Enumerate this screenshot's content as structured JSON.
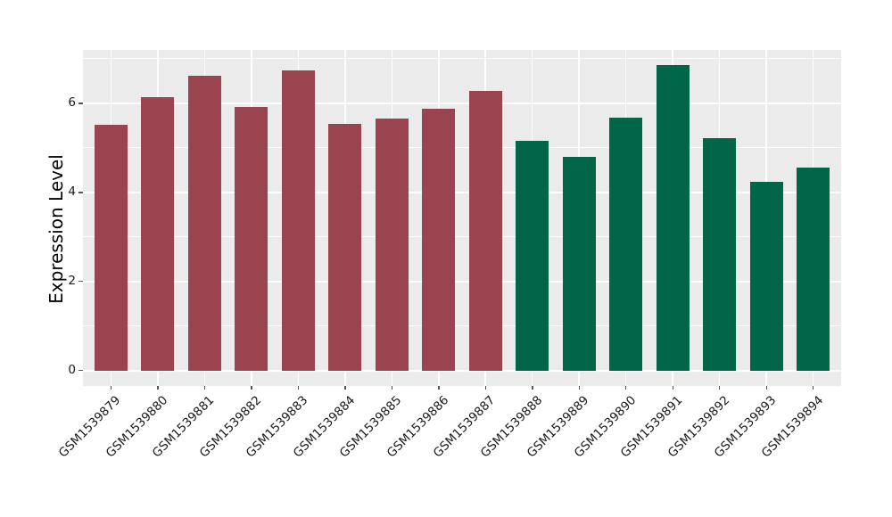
{
  "chart_data": {
    "type": "bar",
    "title": "",
    "xlabel": "",
    "ylabel": "Expression Level",
    "categories": [
      "GSM1539879",
      "GSM1539880",
      "GSM1539881",
      "GSM1539882",
      "GSM1539883",
      "GSM1539884",
      "GSM1539885",
      "GSM1539886",
      "GSM1539887",
      "GSM1539888",
      "GSM1539889",
      "GSM1539890",
      "GSM1539891",
      "GSM1539892",
      "GSM1539893",
      "GSM1539894"
    ],
    "values": [
      5.52,
      6.13,
      6.61,
      5.91,
      6.73,
      5.54,
      5.65,
      5.87,
      6.27,
      5.16,
      4.8,
      5.67,
      6.86,
      5.21,
      4.23,
      4.55
    ],
    "bar_colors": [
      "#9A4450",
      "#9A4450",
      "#9A4450",
      "#9A4450",
      "#9A4450",
      "#9A4450",
      "#9A4450",
      "#9A4450",
      "#9A4450",
      "#006647",
      "#006647",
      "#006647",
      "#006647",
      "#006647",
      "#006647",
      "#006647"
    ],
    "group_colors": {
      "group1_color": "#9A4450",
      "group1_count": 9,
      "group2_color": "#006647",
      "group2_count": 7
    },
    "yticks": [
      0,
      2,
      4,
      6
    ],
    "yticks_minor": [
      1,
      3,
      5,
      7
    ],
    "ylim": [
      -0.35,
      7.2
    ],
    "grid": true,
    "legend": false,
    "panel_bg": "#EBEBEB",
    "grid_color": "#FFFFFF"
  }
}
